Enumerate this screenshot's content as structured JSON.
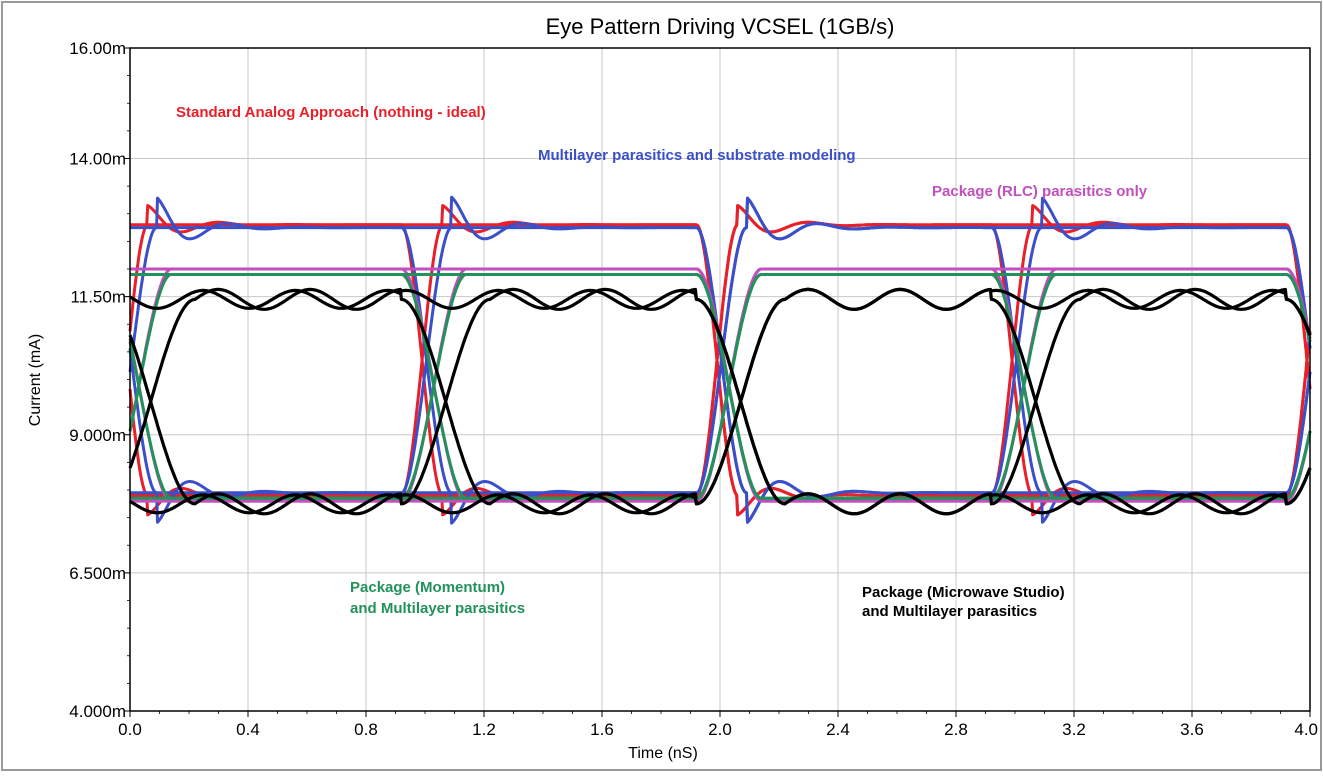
{
  "chart_data": {
    "type": "line",
    "title": "Eye Pattern Driving VCSEL (1GB/s)",
    "xlabel": "Time (nS)",
    "ylabel": "Current (mA)",
    "xlim": [
      0.0,
      4.0
    ],
    "ylim": [
      4.0,
      16.0
    ],
    "x_ticks": [
      "0.0",
      "0.4",
      "0.8",
      "1.2",
      "1.6",
      "2.0",
      "2.4",
      "2.8",
      "3.2",
      "3.6",
      "4.0"
    ],
    "y_ticks": [
      "4.000m",
      "6.500m",
      "9.000m",
      "11.50m",
      "14.00m",
      "16.00m"
    ],
    "grid": true,
    "series": [
      {
        "name": "Standard Analog Approach (nothing - ideal)",
        "color": "#e8202a",
        "high": 12.8,
        "low": 7.9,
        "transition": 0.14,
        "overshoot": 0.35,
        "ripple": 0.0
      },
      {
        "name": "Multilayer parasitics and substrate modeling",
        "color": "#3a4fc8",
        "high": 12.75,
        "low": 7.95,
        "transition": 0.17,
        "overshoot": 0.55,
        "ripple": 0.0
      },
      {
        "name": "Package (RLC) parasitics only",
        "color": "#c24fc0",
        "high": 12.0,
        "low": 7.8,
        "transition": 0.22,
        "overshoot": 0.0,
        "ripple": 0.0
      },
      {
        "name": "Package (Momentum) and Multilayer parasitics",
        "color": "#22915a",
        "high": 11.9,
        "low": 7.85,
        "transition": 0.22,
        "overshoot": 0.0,
        "ripple": 0.0
      },
      {
        "name": "Package (Microwave Studio) and Multilayer parasitics",
        "color": "#000000",
        "high": 11.45,
        "low": 7.75,
        "transition": 0.3,
        "overshoot": 0.0,
        "ripple": 0.18
      }
    ],
    "annotations": [
      {
        "text": "Standard Analog Approach (nothing - ideal)",
        "color": "#e8202a"
      },
      {
        "text": "Multilayer parasitics and substrate modeling",
        "color": "#3a4fc8"
      },
      {
        "text": "Package (RLC) parasitics only",
        "color": "#c24fc0"
      },
      {
        "text": "Package (Momentum)",
        "color": "#22915a"
      },
      {
        "text": "and Multilayer parasitics",
        "color": "#22915a"
      },
      {
        "text": "Package (Microwave Studio)",
        "color": "#000000"
      },
      {
        "text": "and Multilayer parasitics",
        "color": "#000000"
      }
    ]
  }
}
